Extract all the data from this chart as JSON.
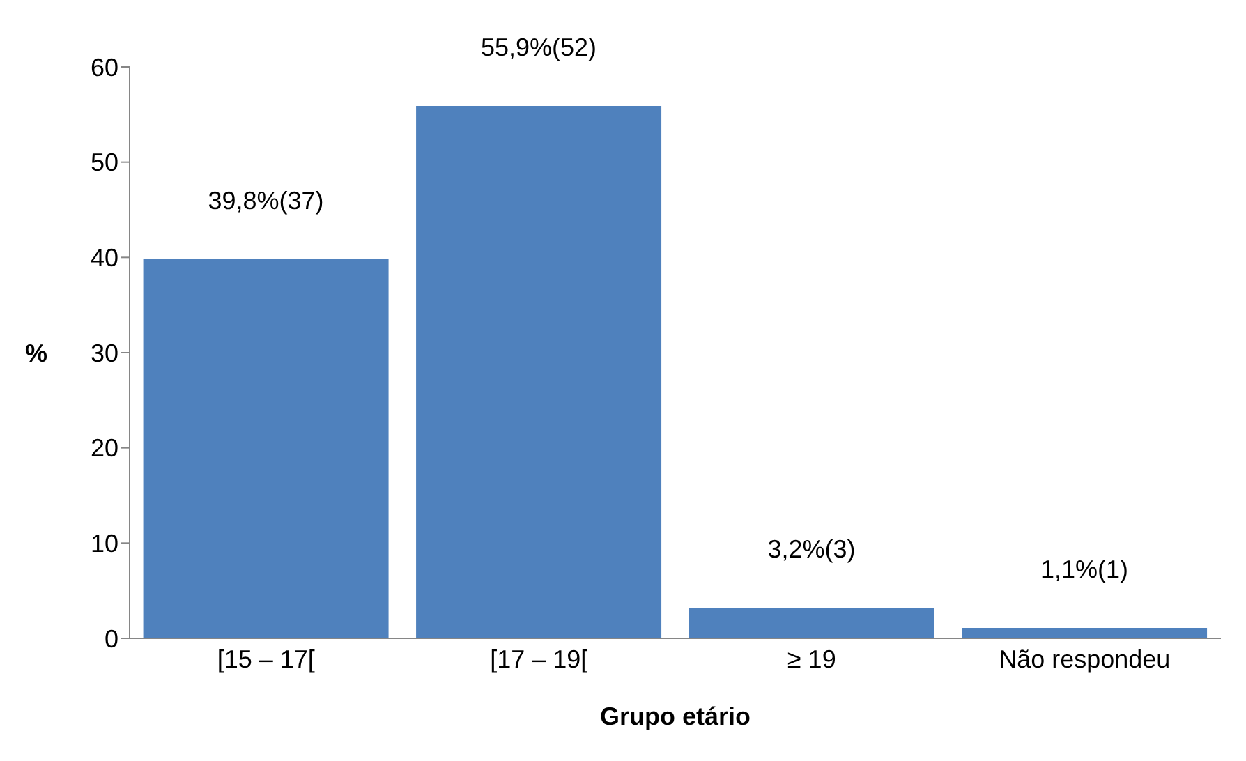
{
  "chart_data": {
    "type": "bar",
    "xlabel": "Grupo etário",
    "ylabel": "%",
    "categories": [
      "[15 – 17[",
      "[17 – 19[",
      "≥ 19",
      "Não respondeu"
    ],
    "values": [
      39.8,
      55.9,
      3.2,
      1.1
    ],
    "value_labels": [
      "39,8%(37)",
      "55,9%(52)",
      "3,2%(3)",
      "1,1%(1)"
    ],
    "color": "#4f81bd",
    "ylim": [
      0,
      60
    ],
    "yticks": [
      0,
      10,
      20,
      30,
      40,
      50,
      60
    ],
    "grid": false,
    "legend": false
  }
}
